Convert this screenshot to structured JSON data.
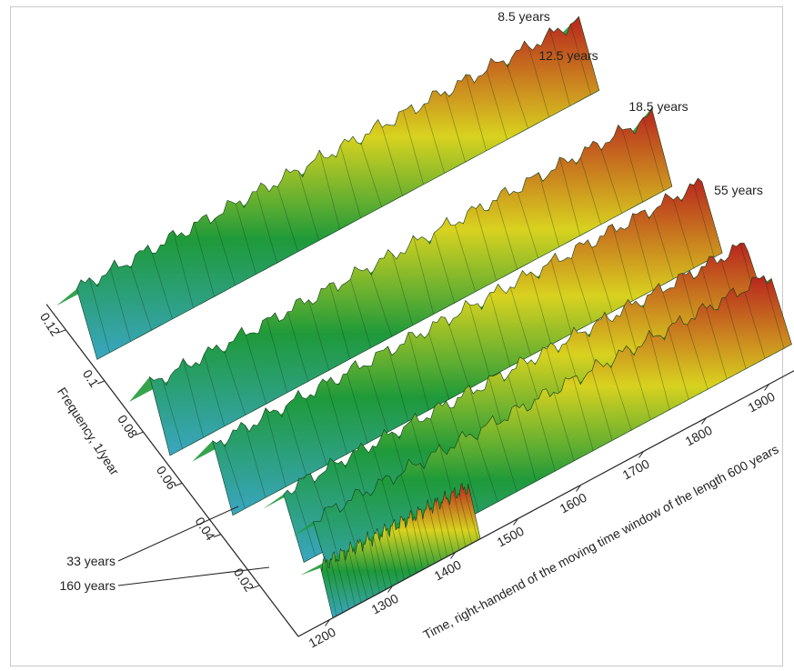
{
  "colors": {
    "low": "#3aa6c2",
    "mid": "#1f9a3a",
    "high": "#d8d21f",
    "peak": "#b9241f",
    "axis": "#222222",
    "frame": "#c9c9c9"
  },
  "chart_data": {
    "type": "area",
    "title": "",
    "xlabel": "Time, right-handend of the moving time window of the length 600 years",
    "ylabel": "Frequency, 1/year",
    "x_ticks": [
      1200,
      1300,
      1400,
      1500,
      1600,
      1700,
      1800,
      1900
    ],
    "y_ticks": [
      0.02,
      0.04,
      0.06,
      0.08,
      0.1,
      0.12
    ],
    "xlim": [
      1150,
      1960
    ],
    "ylim": [
      0,
      0.13
    ],
    "ridges": [
      {
        "label": "160 years",
        "frequency": 0.00625,
        "start": 1205,
        "end": 1440,
        "label_side": "left"
      },
      {
        "label": "33 years",
        "frequency": 0.0303,
        "start": 1220,
        "end": 1960,
        "label_side": "left"
      },
      {
        "label": "55 years",
        "frequency": 0.0182,
        "start": 1230,
        "end": 1960,
        "label_side": "right"
      },
      {
        "label": "18.5 years",
        "frequency": 0.054,
        "start": 1180,
        "end": 1960,
        "label_side": "right"
      },
      {
        "label": "12.5 years",
        "frequency": 0.08,
        "start": 1160,
        "end": 1960,
        "label_side": "right"
      },
      {
        "label": "8.5 years",
        "frequency": 0.1176,
        "start": 1160,
        "end": 1960,
        "label_side": "right"
      }
    ]
  }
}
